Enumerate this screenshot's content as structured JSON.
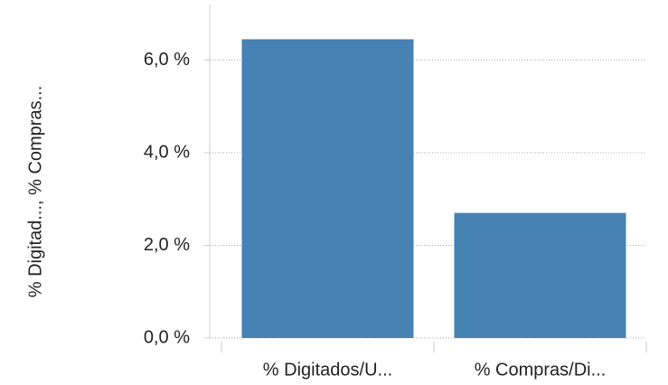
{
  "chart_data": {
    "type": "bar",
    "y_label": "% Digitad..., % Compras...",
    "categories": [
      "% Digitados/U...",
      "% Compras/Di..."
    ],
    "values": [
      6.45,
      2.7
    ],
    "color": "#4682b4",
    "ylim": [
      0,
      7.2
    ],
    "yticks": [
      {
        "value": 0,
        "label": "0,0 %"
      },
      {
        "value": 2,
        "label": "2,0 %"
      },
      {
        "value": 4,
        "label": "4,0 %"
      },
      {
        "value": 6,
        "label": "6,0 %"
      }
    ],
    "grid": true
  }
}
